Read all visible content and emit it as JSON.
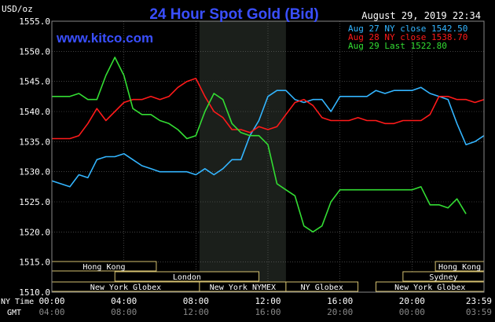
{
  "chart_data": {
    "type": "line",
    "title": "24 Hour Spot Gold (Bid)",
    "ylabel": "USD/oz",
    "timestamp": "August 29, 2019 22:34",
    "source": "www.kitco.com",
    "ylim": [
      1510,
      1555
    ],
    "yticks": [
      "1555.0",
      "1550.0",
      "1545.0",
      "1540.0",
      "1535.0",
      "1530.0",
      "1525.0",
      "1520.0",
      "1515.0",
      "1510.0"
    ],
    "xlim": [
      0,
      24
    ],
    "nytime_label": "NY Time",
    "gmt_label": "GMT",
    "nytime_ticks": [
      "00:00",
      "04:00",
      "08:00",
      "12:00",
      "16:00",
      "20:00",
      "23:59"
    ],
    "gmt_ticks": [
      "04:00",
      "08:00",
      "12:00",
      "16:00",
      "20:00",
      "00:00",
      "03:59"
    ],
    "shaded_range": [
      8.2,
      13.0
    ],
    "legend": [
      {
        "label": "Aug 27 NY close 1542.50",
        "color": "#33b5ff"
      },
      {
        "label": "Aug 28 NY close 1538.70",
        "color": "#ff1a1a"
      },
      {
        "label": "Aug 29 Last 1522.80",
        "color": "#33dd33"
      }
    ],
    "sessions": [
      {
        "name": "Hong Kong",
        "start": 0,
        "end": 5.8,
        "row": 0
      },
      {
        "name": "Hong Kong",
        "start": 21.3,
        "end": 24,
        "row": 0
      },
      {
        "name": "London",
        "start": 3.5,
        "end": 11.5,
        "row": 1
      },
      {
        "name": "Sydney",
        "start": 19.5,
        "end": 24,
        "row": 1
      },
      {
        "name": "New York Globex",
        "start": 0,
        "end": 8.2,
        "row": 2
      },
      {
        "name": "New York NYMEX",
        "start": 8.2,
        "end": 13.0,
        "row": 2
      },
      {
        "name": "NY Globex",
        "start": 13.0,
        "end": 17.0,
        "row": 2
      },
      {
        "name": "New York Globex",
        "start": 18.0,
        "end": 24,
        "row": 2
      }
    ],
    "series": [
      {
        "name": "Aug 27",
        "color": "#33b5ff",
        "x": [
          0,
          0.5,
          1,
          1.5,
          2,
          2.5,
          3,
          3.5,
          4,
          4.5,
          5,
          5.5,
          6,
          6.5,
          7,
          7.5,
          8,
          8.5,
          9,
          9.5,
          10,
          10.5,
          11,
          11.5,
          12,
          12.5,
          13,
          13.5,
          14,
          14.5,
          15,
          15.5,
          16,
          16.5,
          17,
          17.5,
          18,
          18.5,
          19,
          19.5,
          20,
          20.5,
          21,
          21.5,
          22,
          22.5,
          23,
          23.5,
          24
        ],
        "values": [
          1528.5,
          1528.0,
          1527.5,
          1529.5,
          1529.0,
          1532.0,
          1532.5,
          1532.5,
          1533.0,
          1532.0,
          1531.0,
          1530.5,
          1530.0,
          1530.0,
          1530.0,
          1530.0,
          1529.5,
          1530.5,
          1529.5,
          1530.5,
          1532.0,
          1532.0,
          1536.0,
          1538.5,
          1542.5,
          1543.5,
          1543.5,
          1542.0,
          1541.5,
          1542.0,
          1542.0,
          1540.0,
          1542.5,
          1542.5,
          1542.5,
          1542.5,
          1543.5,
          1543.0,
          1543.5,
          1543.5,
          1543.5,
          1544.0,
          1543.0,
          1542.5,
          1542.0,
          1538.0,
          1534.5,
          1535.0,
          1536.0
        ]
      },
      {
        "name": "Aug 28",
        "color": "#ff1a1a",
        "x": [
          0,
          0.5,
          1,
          1.5,
          2,
          2.5,
          3,
          3.5,
          4,
          4.5,
          5,
          5.5,
          6,
          6.5,
          7,
          7.5,
          8,
          8.5,
          9,
          9.5,
          10,
          10.5,
          11,
          11.5,
          12,
          12.5,
          13,
          13.5,
          14,
          14.5,
          15,
          15.5,
          16,
          16.5,
          17,
          17.5,
          18,
          18.5,
          19,
          19.5,
          20,
          20.5,
          21,
          21.5,
          22,
          22.5,
          23,
          23.5,
          24
        ],
        "values": [
          1535.5,
          1535.5,
          1535.5,
          1536.0,
          1538.0,
          1540.5,
          1538.5,
          1540.0,
          1541.5,
          1542.0,
          1542.0,
          1542.5,
          1542.0,
          1542.5,
          1544.0,
          1545.0,
          1545.5,
          1542.5,
          1540.0,
          1539.0,
          1537.0,
          1537.0,
          1536.5,
          1537.5,
          1537.0,
          1537.5,
          1539.5,
          1541.5,
          1542.0,
          1541.0,
          1539.0,
          1538.5,
          1538.5,
          1538.5,
          1539.0,
          1538.5,
          1538.5,
          1538.0,
          1538.0,
          1538.5,
          1538.5,
          1538.5,
          1539.5,
          1542.5,
          1542.5,
          1542.0,
          1542.0,
          1541.5,
          1542.0
        ]
      },
      {
        "name": "Aug 29",
        "color": "#33dd33",
        "x": [
          0,
          0.5,
          1,
          1.5,
          2,
          2.5,
          3,
          3.5,
          4,
          4.5,
          5,
          5.5,
          6,
          6.5,
          7,
          7.5,
          8,
          8.5,
          9,
          9.5,
          10,
          10.5,
          11,
          11.5,
          12,
          12.5,
          13,
          13.5,
          14,
          14.5,
          15,
          15.5,
          16,
          16.5,
          17,
          17.5,
          18,
          18.5,
          19,
          19.5,
          20,
          20.5,
          21,
          21.5,
          22,
          22.5,
          23
        ],
        "values": [
          1542.5,
          1542.5,
          1542.5,
          1543.0,
          1542.0,
          1542.0,
          1546.0,
          1549.0,
          1546.0,
          1540.5,
          1539.5,
          1539.5,
          1538.5,
          1538.0,
          1537.0,
          1535.5,
          1536.0,
          1540.0,
          1543.0,
          1542.0,
          1538.0,
          1536.5,
          1536.0,
          1536.0,
          1534.5,
          1528.0,
          1527.0,
          1526.0,
          1521.0,
          1520.0,
          1521.0,
          1525.0,
          1527.0,
          1527.0,
          1527.0,
          1527.0,
          1527.0,
          1527.0,
          1527.0,
          1527.0,
          1527.0,
          1527.5,
          1524.5,
          1524.5,
          1524.0,
          1525.5,
          1523.0
        ]
      }
    ]
  }
}
